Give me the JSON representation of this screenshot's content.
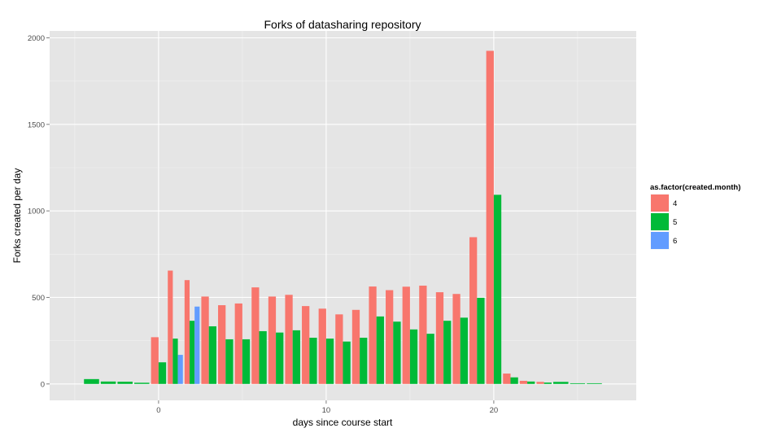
{
  "chart_data": {
    "type": "bar",
    "title": "Forks of datasharing repository",
    "xlabel": "days since course start",
    "ylabel": "Forks created per day",
    "xlim": [
      -6.5,
      28.5
    ],
    "ylim": [
      -95,
      2040
    ],
    "x_ticks": [
      0,
      10,
      20
    ],
    "y_ticks": [
      0,
      500,
      1000,
      1500,
      2000
    ],
    "grid": true,
    "legend": {
      "title": "as.factor(created.month)",
      "position": "right"
    },
    "series": [
      {
        "name": "4",
        "color": "#F8766D",
        "points": [
          {
            "x": 0,
            "y": 270
          },
          {
            "x": 1,
            "y": 655
          },
          {
            "x": 2,
            "y": 600
          },
          {
            "x": 3,
            "y": 505
          },
          {
            "x": 4,
            "y": 455
          },
          {
            "x": 5,
            "y": 465
          },
          {
            "x": 6,
            "y": 558
          },
          {
            "x": 7,
            "y": 505
          },
          {
            "x": 8,
            "y": 515
          },
          {
            "x": 9,
            "y": 450
          },
          {
            "x": 10,
            "y": 435
          },
          {
            "x": 11,
            "y": 402
          },
          {
            "x": 12,
            "y": 428
          },
          {
            "x": 13,
            "y": 563
          },
          {
            "x": 14,
            "y": 542
          },
          {
            "x": 15,
            "y": 562
          },
          {
            "x": 16,
            "y": 568
          },
          {
            "x": 17,
            "y": 530
          },
          {
            "x": 18,
            "y": 520
          },
          {
            "x": 19,
            "y": 848
          },
          {
            "x": 20,
            "y": 1925
          },
          {
            "x": 21,
            "y": 60
          },
          {
            "x": 22,
            "y": 18
          },
          {
            "x": 23,
            "y": 12
          }
        ]
      },
      {
        "name": "5",
        "color": "#00BA38",
        "points": [
          {
            "x": -4,
            "y": 28
          },
          {
            "x": -3,
            "y": 14
          },
          {
            "x": -2,
            "y": 13
          },
          {
            "x": -1,
            "y": 7
          },
          {
            "x": 0,
            "y": 125
          },
          {
            "x": 1,
            "y": 262
          },
          {
            "x": 2,
            "y": 365
          },
          {
            "x": 3,
            "y": 333
          },
          {
            "x": 4,
            "y": 258
          },
          {
            "x": 5,
            "y": 258
          },
          {
            "x": 6,
            "y": 305
          },
          {
            "x": 7,
            "y": 297
          },
          {
            "x": 8,
            "y": 310
          },
          {
            "x": 9,
            "y": 267
          },
          {
            "x": 10,
            "y": 262
          },
          {
            "x": 11,
            "y": 245
          },
          {
            "x": 12,
            "y": 267
          },
          {
            "x": 13,
            "y": 390
          },
          {
            "x": 14,
            "y": 360
          },
          {
            "x": 15,
            "y": 315
          },
          {
            "x": 16,
            "y": 290
          },
          {
            "x": 17,
            "y": 365
          },
          {
            "x": 18,
            "y": 383
          },
          {
            "x": 19,
            "y": 498
          },
          {
            "x": 20,
            "y": 1093
          },
          {
            "x": 21,
            "y": 38
          },
          {
            "x": 22,
            "y": 14
          },
          {
            "x": 23,
            "y": 8
          },
          {
            "x": 24,
            "y": 12
          },
          {
            "x": 25,
            "y": 4
          },
          {
            "x": 26,
            "y": 4
          }
        ]
      },
      {
        "name": "6",
        "color": "#619CFF",
        "points": [
          {
            "x": 1,
            "y": 168
          },
          {
            "x": 2,
            "y": 447
          }
        ]
      }
    ]
  }
}
